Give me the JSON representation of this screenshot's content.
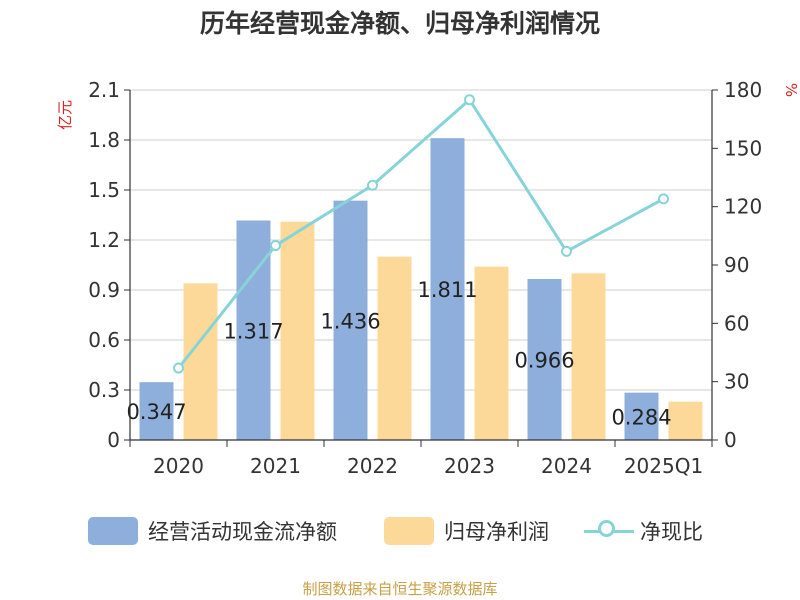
{
  "title": "历年经营现金净额、归母净利润情况",
  "source": "制图数据来自恒生聚源数据库",
  "chart_data": {
    "type": "bar",
    "categories": [
      "2020",
      "2021",
      "2022",
      "2023",
      "2024",
      "2025Q1"
    ],
    "y_left": {
      "label": "亿元",
      "range": [
        0,
        2.1
      ],
      "ticks": [
        "0",
        "0.3",
        "0.6",
        "0.9",
        "1.2",
        "1.5",
        "1.8",
        "2.1"
      ]
    },
    "y_right": {
      "label": "%",
      "range": [
        0,
        180
      ],
      "ticks": [
        "0",
        "30",
        "60",
        "90",
        "120",
        "150",
        "180"
      ]
    },
    "grid": true,
    "legend_position": "bottom",
    "series": [
      {
        "name": "经营活动现金流净额",
        "type": "bar",
        "axis": "left",
        "color": "#8eaedb",
        "values": [
          0.347,
          1.317,
          1.436,
          1.811,
          0.966,
          0.284
        ],
        "labels": [
          "0.347",
          "1.317",
          "1.436",
          "1.811",
          "0.966",
          "0.284"
        ]
      },
      {
        "name": "归母净利润",
        "type": "bar",
        "axis": "left",
        "color": "#fdd999",
        "values": [
          0.94,
          1.31,
          1.1,
          1.04,
          1.0,
          0.23
        ]
      },
      {
        "name": "净现比",
        "type": "line",
        "axis": "right",
        "color": "#86d4d8",
        "values": [
          37,
          100,
          131,
          175,
          97,
          124
        ]
      }
    ]
  }
}
